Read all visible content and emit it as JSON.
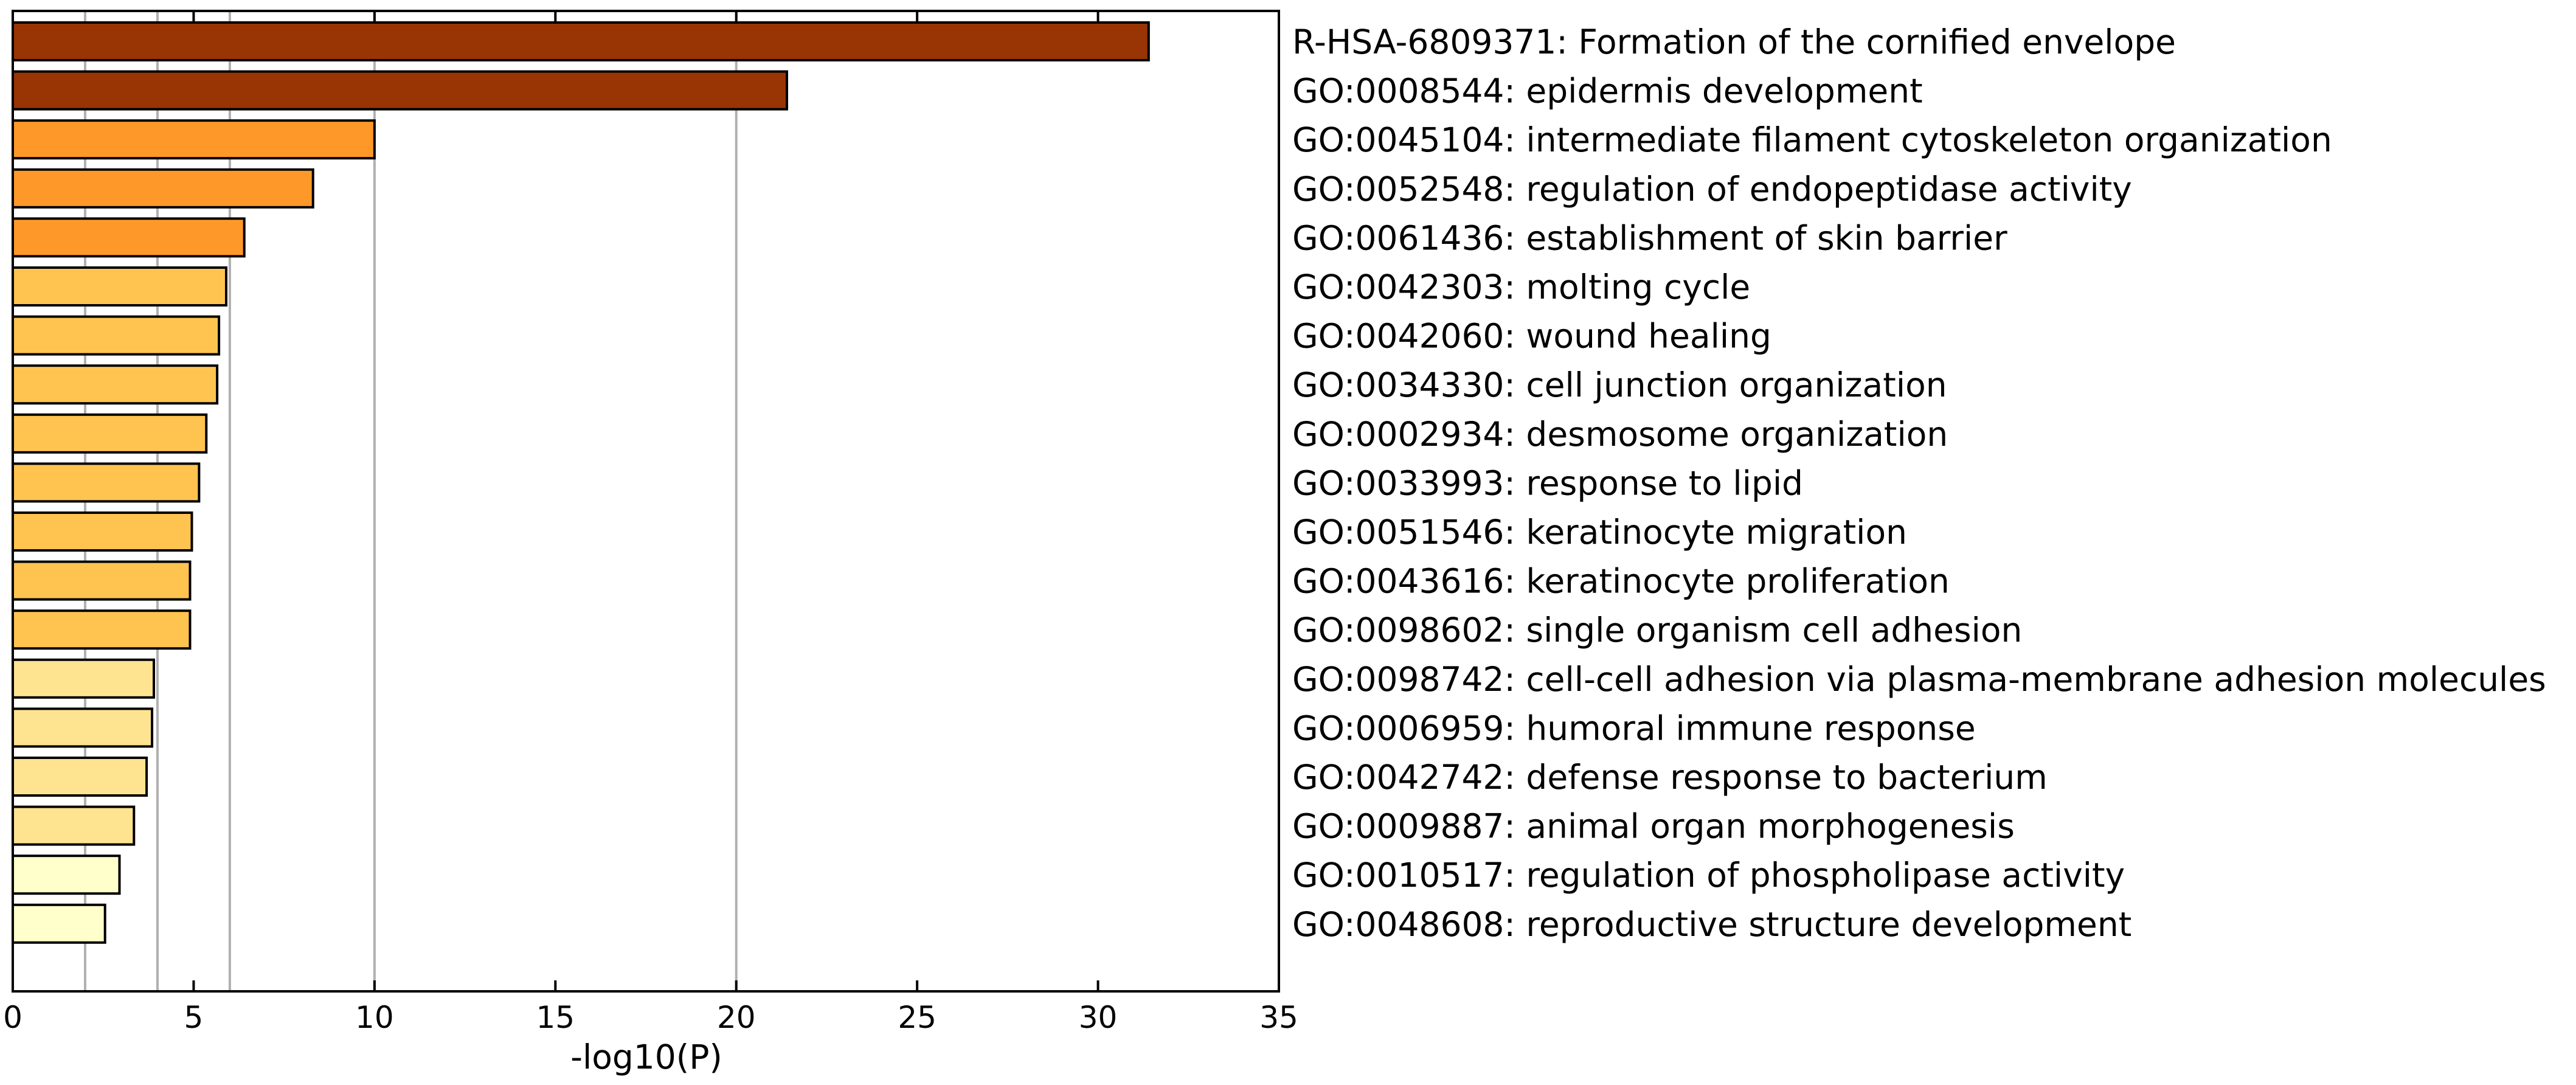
{
  "chart_data": {
    "type": "bar",
    "orientation": "horizontal",
    "xlabel": "-log10(P)",
    "xlim": [
      0,
      35
    ],
    "xticks": [
      "0",
      "5",
      "10",
      "15",
      "20",
      "25",
      "30",
      "35"
    ],
    "reference_lines_x": [
      2,
      4,
      6,
      10,
      20
    ],
    "grid": "vertical reference lines",
    "categories": [
      "R-HSA-6809371: Formation of the cornified envelope",
      "GO:0008544: epidermis development",
      "GO:0045104: intermediate filament cytoskeleton organization",
      "GO:0052548: regulation of endopeptidase activity",
      "GO:0061436: establishment of skin barrier",
      "GO:0042303: molting cycle",
      "GO:0042060: wound healing",
      "GO:0034330: cell junction organization",
      "GO:0002934: desmosome organization",
      "GO:0033993: response to lipid",
      "GO:0051546: keratinocyte migration",
      "GO:0043616: keratinocyte proliferation",
      "GO:0098602: single organism cell adhesion",
      "GO:0098742: cell-cell adhesion via plasma-membrane adhesion molecules",
      "GO:0006959: humoral immune response",
      "GO:0042742: defense response to bacterium",
      "GO:0009887: animal organ morphogenesis",
      "GO:0010517: regulation of phospholipase activity",
      "GO:0048608: reproductive structure development"
    ],
    "values": [
      31.4,
      21.4,
      10.0,
      8.3,
      6.4,
      5.9,
      5.7,
      5.65,
      5.35,
      5.15,
      4.95,
      4.9,
      4.9,
      3.9,
      3.85,
      3.7,
      3.35,
      2.95,
      2.55
    ],
    "colors": [
      "#993404",
      "#993404",
      "#fe9929",
      "#fe9929",
      "#fe9929",
      "#fec44f",
      "#fec44f",
      "#fec44f",
      "#fec44f",
      "#fec44f",
      "#fec44f",
      "#fec44f",
      "#fec44f",
      "#fee391",
      "#fee391",
      "#fee391",
      "#fee391",
      "#ffffcc",
      "#ffffcc"
    ]
  }
}
